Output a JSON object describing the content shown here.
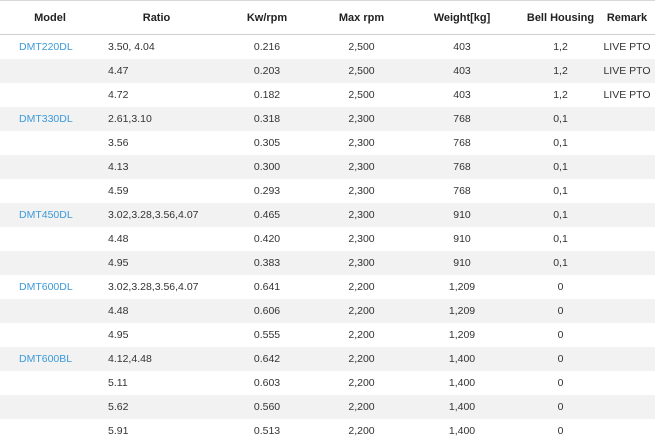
{
  "headers": {
    "model": "Model",
    "ratio": "Ratio",
    "kw": "Kw/rpm",
    "max_rpm": "Max rpm",
    "weight": "Weight[kg]",
    "bell": "Bell Housing",
    "remark": "Remark"
  },
  "rows": [
    {
      "model": "DMT220DL",
      "ratio": "3.50, 4.04",
      "kw": "0.216",
      "max_rpm": "2,500",
      "weight": "403",
      "bell": "1,2",
      "remark": "LIVE PTO"
    },
    {
      "model": "",
      "ratio": "4.47",
      "kw": "0.203",
      "max_rpm": "2,500",
      "weight": "403",
      "bell": "1,2",
      "remark": "LIVE PTO"
    },
    {
      "model": "",
      "ratio": "4.72",
      "kw": "0.182",
      "max_rpm": "2,500",
      "weight": "403",
      "bell": "1,2",
      "remark": "LIVE PTO"
    },
    {
      "model": "DMT330DL",
      "ratio": "2.61,3.10",
      "kw": "0.318",
      "max_rpm": "2,300",
      "weight": "768",
      "bell": "0,1",
      "remark": ""
    },
    {
      "model": "",
      "ratio": "3.56",
      "kw": "0.305",
      "max_rpm": "2,300",
      "weight": "768",
      "bell": "0,1",
      "remark": ""
    },
    {
      "model": "",
      "ratio": "4.13",
      "kw": "0.300",
      "max_rpm": "2,300",
      "weight": "768",
      "bell": "0,1",
      "remark": ""
    },
    {
      "model": "",
      "ratio": "4.59",
      "kw": "0.293",
      "max_rpm": "2,300",
      "weight": "768",
      "bell": "0,1",
      "remark": ""
    },
    {
      "model": "DMT450DL",
      "ratio": "3.02,3.28,3.56,4.07",
      "kw": "0.465",
      "max_rpm": "2,300",
      "weight": "910",
      "bell": "0,1",
      "remark": ""
    },
    {
      "model": "",
      "ratio": "4.48",
      "kw": "0.420",
      "max_rpm": "2,300",
      "weight": "910",
      "bell": "0,1",
      "remark": ""
    },
    {
      "model": "",
      "ratio": "4.95",
      "kw": "0.383",
      "max_rpm": "2,300",
      "weight": "910",
      "bell": "0,1",
      "remark": ""
    },
    {
      "model": "DMT600DL",
      "ratio": "3.02,3.28,3.56,4.07",
      "kw": "0.641",
      "max_rpm": "2,200",
      "weight": "1,209",
      "bell": "0",
      "remark": ""
    },
    {
      "model": "",
      "ratio": "4.48",
      "kw": "0.606",
      "max_rpm": "2,200",
      "weight": "1,209",
      "bell": "0",
      "remark": ""
    },
    {
      "model": "",
      "ratio": "4.95",
      "kw": "0.555",
      "max_rpm": "2,200",
      "weight": "1,209",
      "bell": "0",
      "remark": ""
    },
    {
      "model": "DMT600BL",
      "ratio": "4.12,4.48",
      "kw": "0.642",
      "max_rpm": "2,200",
      "weight": "1,400",
      "bell": "0",
      "remark": ""
    },
    {
      "model": "",
      "ratio": "5.11",
      "kw": "0.603",
      "max_rpm": "2,200",
      "weight": "1,400",
      "bell": "0",
      "remark": ""
    },
    {
      "model": "",
      "ratio": "5.62",
      "kw": "0.560",
      "max_rpm": "2,200",
      "weight": "1,400",
      "bell": "0",
      "remark": ""
    },
    {
      "model": "",
      "ratio": "5.91",
      "kw": "0.513",
      "max_rpm": "2,200",
      "weight": "1,400",
      "bell": "0",
      "remark": ""
    }
  ],
  "colors": {
    "model_link": "#3b9ad9",
    "stripe": "#f2f2f2"
  }
}
